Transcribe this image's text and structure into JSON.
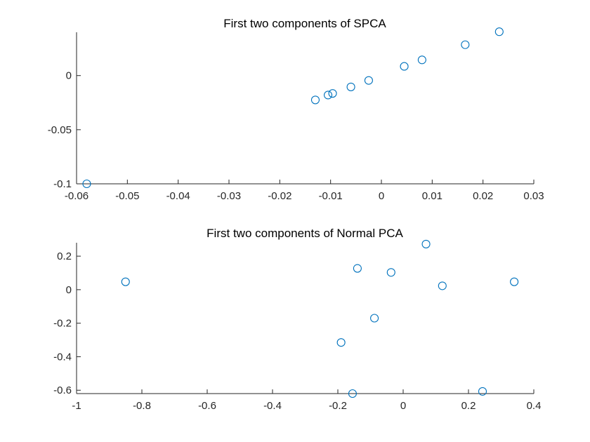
{
  "chart_data": [
    {
      "type": "scatter",
      "title": "First two components of SPCA",
      "xlabel": "",
      "ylabel": "",
      "xlim": [
        -0.06,
        0.03
      ],
      "ylim": [
        -0.1,
        0.04
      ],
      "xticks": [
        -0.06,
        -0.05,
        -0.04,
        -0.03,
        -0.02,
        -0.01,
        0,
        0.01,
        0.02,
        0.03
      ],
      "xtick_labels": [
        "-0.06",
        "-0.05",
        "-0.04",
        "-0.03",
        "-0.02",
        "-0.01",
        "0",
        "0.01",
        "0.02",
        "0.03"
      ],
      "yticks": [
        -0.1,
        -0.05,
        0
      ],
      "ytick_labels": [
        "-0.1",
        "-0.05",
        "0"
      ],
      "grid": false,
      "marker_color": "#0072BD",
      "points": [
        {
          "x": -0.058,
          "y": -0.1
        },
        {
          "x": -0.013,
          "y": -0.0225
        },
        {
          "x": -0.0105,
          "y": -0.018
        },
        {
          "x": -0.0096,
          "y": -0.0165
        },
        {
          "x": -0.006,
          "y": -0.0105
        },
        {
          "x": -0.0025,
          "y": -0.0045
        },
        {
          "x": 0.0045,
          "y": 0.0085
        },
        {
          "x": 0.008,
          "y": 0.0145
        },
        {
          "x": 0.0165,
          "y": 0.0285
        },
        {
          "x": 0.0232,
          "y": 0.0405
        }
      ]
    },
    {
      "type": "scatter",
      "title": "First two components of Normal PCA",
      "xlabel": "",
      "ylabel": "",
      "xlim": [
        -1,
        0.4
      ],
      "ylim": [
        -0.62,
        0.28
      ],
      "xticks": [
        -1,
        -0.8,
        -0.6,
        -0.4,
        -0.2,
        0,
        0.2,
        0.4
      ],
      "xtick_labels": [
        "-1",
        "-0.8",
        "-0.6",
        "-0.4",
        "-0.2",
        "0",
        "0.2",
        "0.4"
      ],
      "yticks": [
        -0.6,
        -0.4,
        -0.2,
        0,
        0.2
      ],
      "ytick_labels": [
        "-0.6",
        "-0.4",
        "-0.2",
        "0",
        "0.2"
      ],
      "grid": false,
      "marker_color": "#0072BD",
      "points": [
        {
          "x": -0.85,
          "y": 0.047
        },
        {
          "x": -0.19,
          "y": -0.315
        },
        {
          "x": -0.155,
          "y": -0.62
        },
        {
          "x": -0.14,
          "y": 0.127
        },
        {
          "x": -0.088,
          "y": -0.17
        },
        {
          "x": -0.037,
          "y": 0.103
        },
        {
          "x": 0.07,
          "y": 0.272
        },
        {
          "x": 0.12,
          "y": 0.023
        },
        {
          "x": 0.243,
          "y": -0.607
        },
        {
          "x": 0.34,
          "y": 0.047
        }
      ]
    }
  ]
}
